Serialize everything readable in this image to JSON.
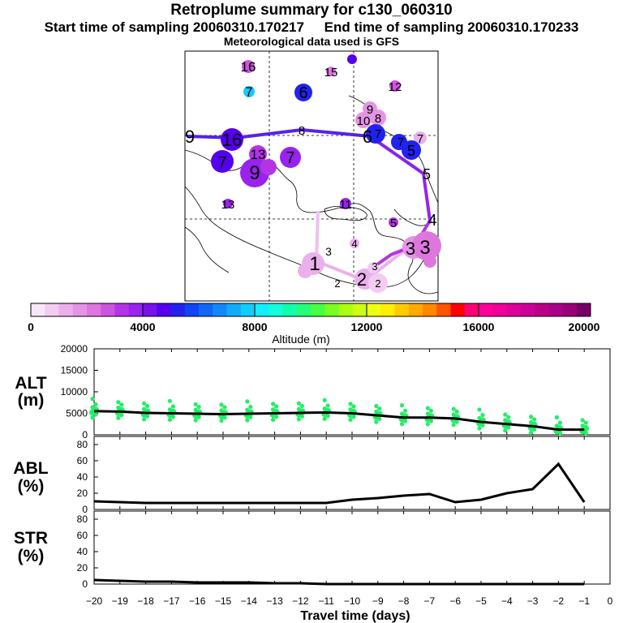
{
  "header": {
    "title": "Retroplume summary for c130_060310",
    "start_time": "Start time of sampling 20060310.170217",
    "end_time": "End time of sampling 20060310.170233",
    "met_data": "Meteorological data used is GFS"
  },
  "colorbar": {
    "label": "Altitude (m)",
    "ticks": [
      "0",
      "4000",
      "8000",
      "12000",
      "16000",
      "20000"
    ],
    "colors": [
      "#f8e6f8",
      "#f2ccf2",
      "#ebb0eb",
      "#e494e4",
      "#dd77dd",
      "#cc55dd",
      "#b533e6",
      "#9922ee",
      "#7711ee",
      "#5500ee",
      "#2222ee",
      "#1144f5",
      "#1166f8",
      "#1188fa",
      "#11aafc",
      "#11ccfd",
      "#11eeff",
      "#11ffdd",
      "#11ffaa",
      "#22ff77",
      "#44ff44",
      "#77ff22",
      "#aaff11",
      "#ccff11",
      "#eeff11",
      "#ffee00",
      "#ffcc00",
      "#ffaa00",
      "#ff8800",
      "#ff5500",
      "#ff0000",
      "#ff0077",
      "#ff0099",
      "#ee0099",
      "#dd0099",
      "#cc0099",
      "#bb0088",
      "#aa0088",
      "#990077",
      "#770066"
    ]
  },
  "map": {
    "labels": [
      "16",
      "15",
      "7",
      "6",
      "12",
      "9",
      "10",
      "8",
      "8",
      "7",
      "9",
      "16",
      "7",
      "7",
      "6",
      "5",
      "5",
      "7",
      "13",
      "7",
      "9",
      "13",
      "11",
      "5",
      "4",
      "3",
      "3",
      "4",
      "3",
      "1",
      "2",
      "2",
      "3",
      "2"
    ]
  },
  "chart_data": [
    {
      "type": "line",
      "panel": "ALT",
      "ylabel": "ALT (m)",
      "ylim": [
        0,
        20000
      ],
      "yticks": [
        "0",
        "5000",
        "10000",
        "15000",
        "20000"
      ],
      "x": [
        -20,
        -19,
        -18,
        -17,
        -16,
        -15,
        -14,
        -13,
        -12,
        -11,
        -10,
        -9,
        -8,
        -7,
        -6,
        -5,
        -4,
        -3,
        -2,
        -1
      ],
      "values": [
        5500,
        5400,
        5100,
        5000,
        4900,
        4800,
        4900,
        5000,
        5100,
        5200,
        5000,
        4500,
        4000,
        4000,
        3800,
        3000,
        2500,
        2000,
        1200,
        1200
      ]
    },
    {
      "type": "line",
      "panel": "ABL",
      "ylabel": "ABL (%)",
      "ylim": [
        0,
        90
      ],
      "yticks": [
        "0",
        "20",
        "40",
        "60",
        "80"
      ],
      "x": [
        -20,
        -19,
        -18,
        -17,
        -16,
        -15,
        -14,
        -13,
        -12,
        -11,
        -10,
        -9,
        -8,
        -7,
        -6,
        -5,
        -4,
        -3,
        -2,
        -1
      ],
      "values": [
        10,
        9,
        8,
        8,
        8,
        8,
        8,
        8,
        8,
        8,
        12,
        14,
        17,
        19,
        9,
        12,
        20,
        25,
        56,
        9
      ]
    },
    {
      "type": "line",
      "panel": "STR",
      "ylabel": "STR (%)",
      "ylim": [
        0,
        90
      ],
      "yticks": [
        "0",
        "20",
        "40",
        "60",
        "80"
      ],
      "x": [
        -20,
        -19,
        -18,
        -17,
        -16,
        -15,
        -14,
        -13,
        -12,
        -11,
        -10,
        -9,
        -8,
        -7,
        -6,
        -5,
        -4,
        -3,
        -2,
        -1
      ],
      "values": [
        5,
        4,
        3,
        3,
        2,
        2,
        2,
        1,
        1,
        0,
        0,
        0,
        0,
        0,
        0,
        0,
        0,
        0,
        0,
        0
      ]
    }
  ],
  "x_axis": {
    "label": "Travel time (days)",
    "ticks": [
      "−20",
      "−19",
      "−18",
      "−17",
      "−16",
      "−15",
      "−14",
      "−13",
      "−12",
      "−11",
      "−10",
      "−9",
      "−8",
      "−7",
      "−6",
      "−5",
      "−4",
      "−3",
      "−2",
      "−1",
      "0"
    ]
  },
  "panel_labels": {
    "alt_line1": "ALT",
    "alt_line2": "(m)",
    "abl_line1": "ABL",
    "abl_line2": "(%)",
    "str_line1": "STR",
    "str_line2": "(%)"
  }
}
